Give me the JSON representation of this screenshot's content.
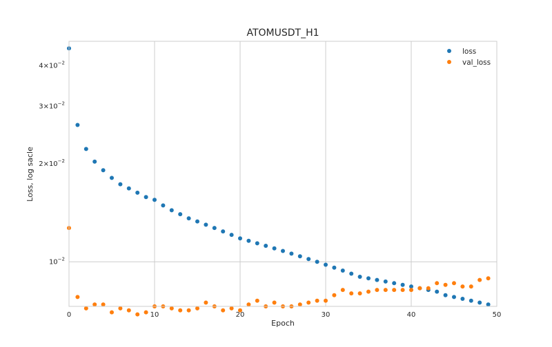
{
  "chart_data": {
    "type": "scatter",
    "title": "ATOMUSDT_H1",
    "xlabel": "Epoch",
    "ylabel": "Loss, log sacle",
    "yscale": "log",
    "xlim": [
      0,
      50
    ],
    "ylim": [
      0.0073,
      0.0475
    ],
    "grid": true,
    "legend_position": "top-right",
    "x_ticks": [
      0,
      10,
      20,
      30,
      40,
      50
    ],
    "y_ticks": [
      {
        "value": 0.04,
        "base": "4",
        "exp": "−2"
      },
      {
        "value": 0.03,
        "base": "3",
        "exp": "−2"
      },
      {
        "value": 0.02,
        "base": "2",
        "exp": "−2"
      },
      {
        "value": 0.01,
        "base": "10",
        "exp": "−2",
        "power_only": true
      }
    ],
    "x": [
      0,
      1,
      2,
      3,
      4,
      5,
      6,
      7,
      8,
      9,
      10,
      11,
      12,
      13,
      14,
      15,
      16,
      17,
      18,
      19,
      20,
      21,
      22,
      23,
      24,
      25,
      26,
      27,
      28,
      29,
      30,
      31,
      32,
      33,
      34,
      35,
      36,
      37,
      38,
      39,
      40,
      41,
      42,
      43,
      44,
      45,
      46,
      47,
      48,
      49
    ],
    "series": [
      {
        "name": "loss",
        "color": "#1f77b4",
        "values": [
          0.0452,
          0.0263,
          0.0222,
          0.0203,
          0.0191,
          0.0181,
          0.0173,
          0.0168,
          0.0163,
          0.0158,
          0.0155,
          0.0149,
          0.0144,
          0.014,
          0.0136,
          0.0133,
          0.013,
          0.0127,
          0.0124,
          0.0121,
          0.0118,
          0.0116,
          0.0114,
          0.0112,
          0.011,
          0.0108,
          0.0106,
          0.0104,
          0.0102,
          0.01,
          0.0098,
          0.0096,
          0.0094,
          0.0092,
          0.009,
          0.0089,
          0.0088,
          0.0087,
          0.0086,
          0.0085,
          0.0084,
          0.0083,
          0.0082,
          0.0081,
          0.0079,
          0.0078,
          0.0077,
          0.0076,
          0.0075,
          0.0074
        ]
      },
      {
        "name": "val_loss",
        "color": "#ff7f0e",
        "values": [
          0.0127,
          0.0078,
          0.0072,
          0.0074,
          0.0074,
          0.007,
          0.0072,
          0.0071,
          0.0069,
          0.007,
          0.0073,
          0.0073,
          0.0072,
          0.0071,
          0.0071,
          0.0072,
          0.0075,
          0.0073,
          0.0071,
          0.0072,
          0.0071,
          0.0074,
          0.0076,
          0.0073,
          0.0075,
          0.0073,
          0.0073,
          0.0074,
          0.0075,
          0.0076,
          0.0076,
          0.0079,
          0.0082,
          0.008,
          0.008,
          0.0081,
          0.0082,
          0.0082,
          0.0082,
          0.0082,
          0.0082,
          0.0083,
          0.0083,
          0.0086,
          0.0085,
          0.0086,
          0.0084,
          0.0084,
          0.0088,
          0.0089
        ]
      }
    ]
  }
}
